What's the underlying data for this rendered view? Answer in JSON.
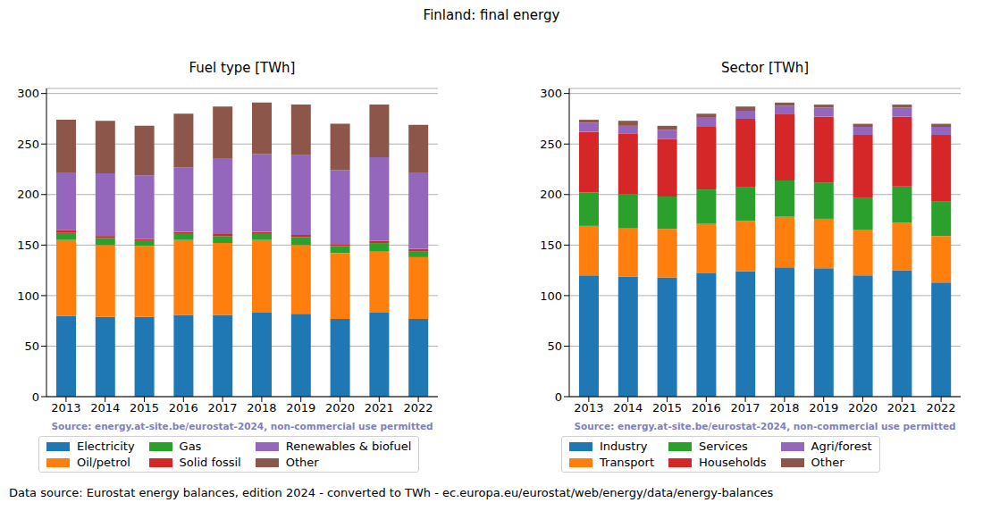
{
  "title": "Finland: final energy",
  "footnote": "Data source: Eurostat energy balances, edition 2024 - converted to TWh - ec.europa.eu/eurostat/web/energy/data/energy-balances",
  "chart_data": [
    {
      "type": "bar",
      "title": "Fuel type [TWh]",
      "annotation": "Source: energy.at-site.be/eurostat-2024, non-commercial use permitted",
      "categories": [
        "2013",
        "2014",
        "2015",
        "2016",
        "2017",
        "2018",
        "2019",
        "2020",
        "2021",
        "2022"
      ],
      "series": [
        {
          "name": "Electricity",
          "color": "#1f77b4",
          "values": [
            80,
            79,
            79,
            81,
            81,
            83,
            82,
            77,
            83,
            77
          ]
        },
        {
          "name": "Oil/petrol",
          "color": "#ff7f0e",
          "values": [
            75,
            71,
            70,
            74,
            71,
            72,
            68,
            65,
            61,
            61
          ]
        },
        {
          "name": "Gas",
          "color": "#2ca02c",
          "values": [
            7,
            7,
            5,
            6,
            7,
            6,
            8,
            7,
            8,
            6
          ]
        },
        {
          "name": "Solid fossil",
          "color": "#d62728",
          "values": [
            3,
            2,
            2,
            2,
            2,
            2,
            2,
            2,
            2,
            2
          ]
        },
        {
          "name": "Renewables & biofuel",
          "color": "#9467bd",
          "values": [
            57,
            62,
            63,
            64,
            75,
            77,
            79,
            73,
            83,
            76
          ]
        },
        {
          "name": "Other",
          "color": "#8c564b",
          "values": [
            52,
            52,
            49,
            53,
            51,
            51,
            50,
            46,
            52,
            47
          ]
        }
      ],
      "stacked": true,
      "ylim": [
        0,
        305
      ],
      "yticks": [
        0,
        50,
        100,
        150,
        200,
        250,
        300
      ],
      "grid": true,
      "legend": "below"
    },
    {
      "type": "bar",
      "title": "Sector [TWh]",
      "annotation": "Source: energy.at-site.be/eurostat-2024, non-commercial use permitted",
      "categories": [
        "2013",
        "2014",
        "2015",
        "2016",
        "2017",
        "2018",
        "2019",
        "2020",
        "2021",
        "2022"
      ],
      "series": [
        {
          "name": "Industry",
          "color": "#1f77b4",
          "values": [
            120,
            119,
            118,
            122,
            124,
            128,
            127,
            120,
            125,
            113
          ]
        },
        {
          "name": "Transport",
          "color": "#ff7f0e",
          "values": [
            49,
            48,
            48,
            49,
            50,
            50,
            49,
            45,
            47,
            46
          ]
        },
        {
          "name": "Services",
          "color": "#2ca02c",
          "values": [
            33,
            33,
            32,
            34,
            33,
            36,
            36,
            32,
            36,
            34
          ]
        },
        {
          "name": "Households",
          "color": "#d62728",
          "values": [
            60,
            60,
            57,
            62,
            68,
            66,
            65,
            62,
            69,
            66
          ]
        },
        {
          "name": "Agri/forest",
          "color": "#9467bd",
          "values": [
            9,
            8,
            9,
            9,
            8,
            8,
            9,
            8,
            9,
            8
          ]
        },
        {
          "name": "Other",
          "color": "#8c564b",
          "values": [
            3,
            5,
            4,
            4,
            4,
            3,
            3,
            3,
            3,
            3
          ]
        }
      ],
      "stacked": true,
      "ylim": [
        0,
        305
      ],
      "yticks": [
        0,
        50,
        100,
        150,
        200,
        250,
        300
      ],
      "grid": true,
      "legend": "below"
    }
  ]
}
